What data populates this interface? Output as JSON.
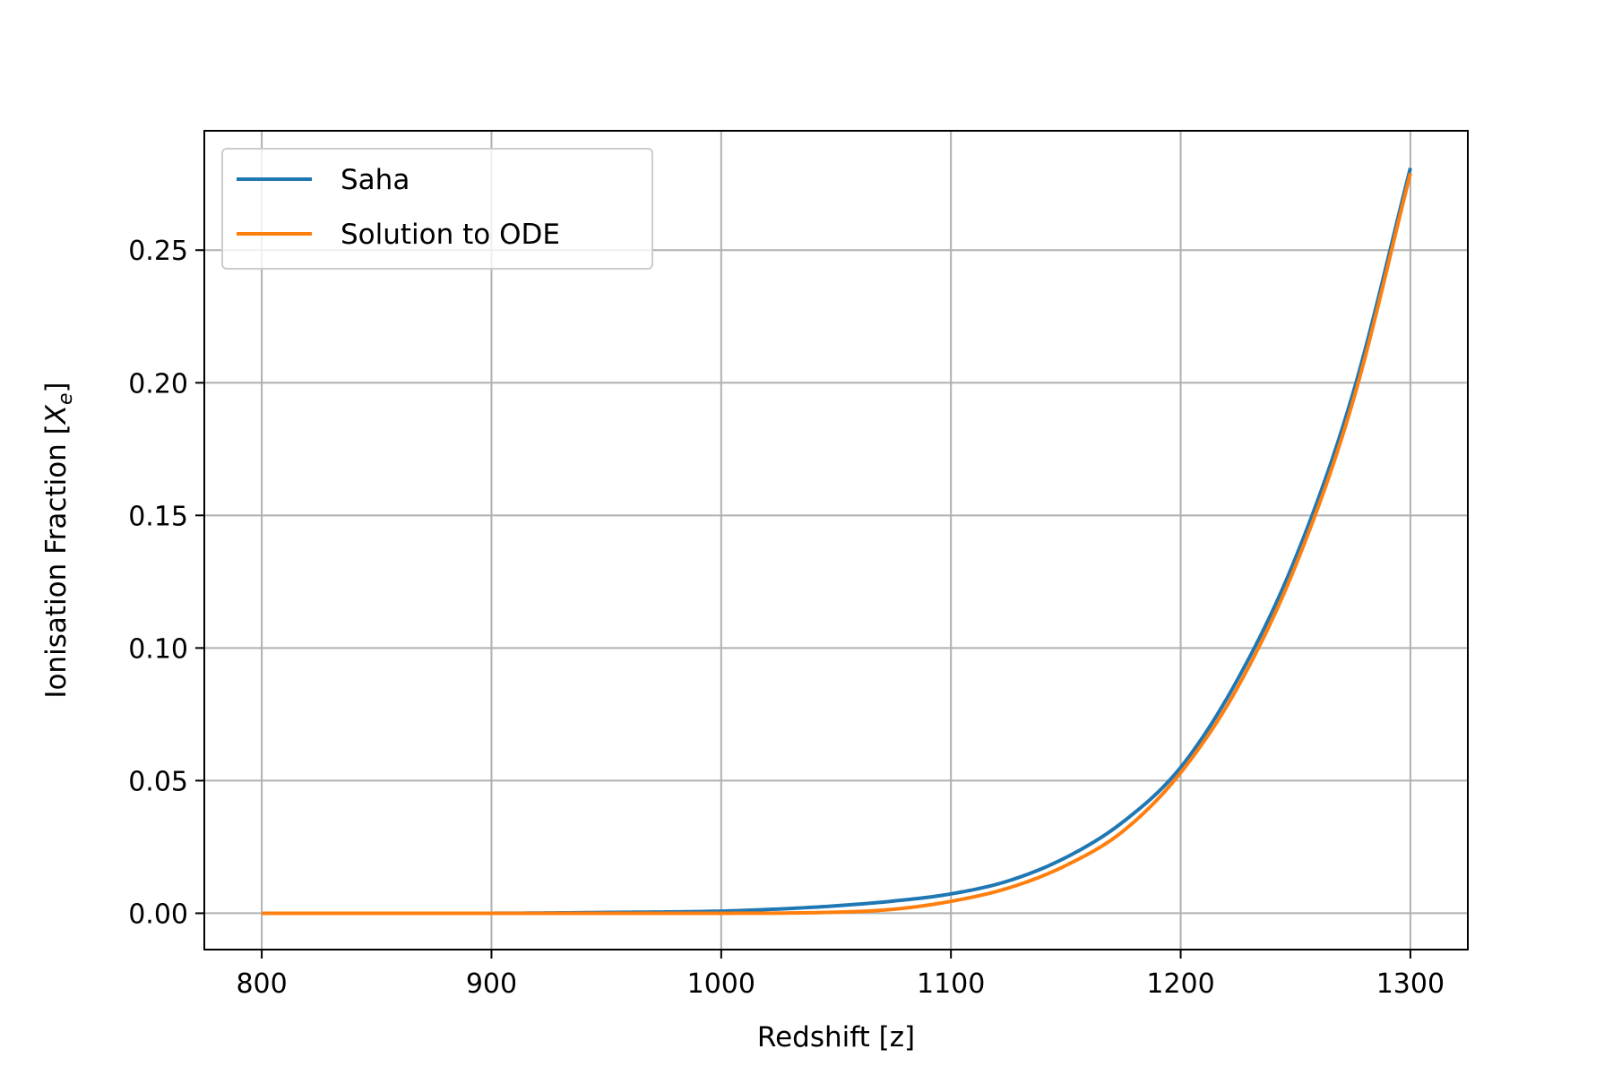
{
  "chart_data": {
    "type": "line",
    "title": "",
    "xlabel": "Redshift [z]",
    "ylabel": {
      "prefix": "Ionisation Fraction [",
      "symbol": "X",
      "subscript": "e",
      "suffix": "]"
    },
    "xlim": [
      775,
      1325
    ],
    "ylim": [
      -0.0137,
      0.295
    ],
    "xticks": [
      800,
      900,
      1000,
      1100,
      1200,
      1300
    ],
    "xtick_labels": [
      "800",
      "900",
      "1000",
      "1100",
      "1200",
      "1300"
    ],
    "yticks": [
      0.0,
      0.05,
      0.1,
      0.15,
      0.2,
      0.25
    ],
    "ytick_labels": [
      "0.00",
      "0.05",
      "0.10",
      "0.15",
      "0.20",
      "0.25"
    ],
    "grid": true,
    "legend_position": "upper-left",
    "series": [
      {
        "name": "Saha",
        "color": "#1f77b4",
        "x": [
          800,
          900,
          950,
          1000,
          1025,
          1050,
          1075,
          1100,
          1125,
          1150,
          1175,
          1200,
          1225,
          1250,
          1275,
          1300
        ],
        "y": [
          0.0,
          0.0,
          0.0003,
          0.0008,
          0.0016,
          0.0028,
          0.0046,
          0.0073,
          0.0122,
          0.021,
          0.0345,
          0.055,
          0.0885,
          0.134,
          0.196,
          0.281
        ]
      },
      {
        "name": "Solution to ODE",
        "color": "#ff7f0e",
        "x": [
          800,
          900,
          950,
          1000,
          1050,
          1075,
          1100,
          1125,
          1150,
          1175,
          1200,
          1225,
          1250,
          1275,
          1300
        ],
        "y": [
          0.0,
          0.0,
          0.0,
          0.0,
          0.0004,
          0.0015,
          0.0045,
          0.0095,
          0.018,
          0.031,
          0.053,
          0.0855,
          0.131,
          0.193,
          0.279
        ]
      }
    ]
  }
}
